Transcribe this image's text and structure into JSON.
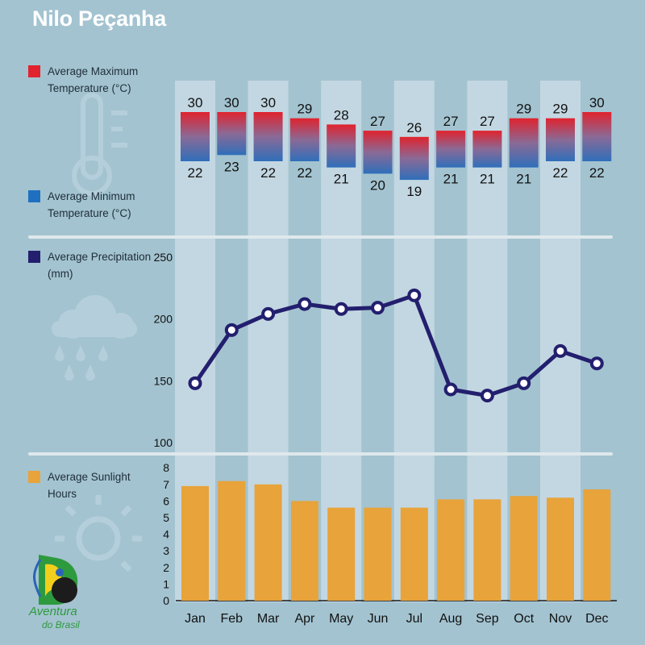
{
  "title": "Nilo Peçanha",
  "legend": {
    "max_temp": "Average Maximum Temperature (°C)",
    "min_temp": "Average Minimum Temperature (°C)",
    "precip": "Average Precipitation (mm)",
    "sun": "Average Sunlight Hours"
  },
  "logo": {
    "line1": "Aventura",
    "line2": "do Brasil"
  },
  "colors": {
    "background": "#a3c3d0",
    "column_band": "#c3d7e2",
    "max_temp": "#e0232e",
    "min_temp": "#1f70c0",
    "precip": "#231f6e",
    "sun": "#e8a33a"
  },
  "chart_data": [
    {
      "type": "bar",
      "name": "temperature",
      "categories": [
        "Jan",
        "Feb",
        "Mar",
        "Apr",
        "May",
        "Jun",
        "Jul",
        "Aug",
        "Sep",
        "Oct",
        "Nov",
        "Dec"
      ],
      "series": [
        {
          "name": "Average Maximum Temperature (°C)",
          "values": [
            30,
            30,
            30,
            29,
            28,
            27,
            26,
            27,
            27,
            29,
            29,
            30
          ]
        },
        {
          "name": "Average Minimum Temperature (°C)",
          "values": [
            22,
            23,
            22,
            22,
            21,
            20,
            19,
            21,
            21,
            21,
            22,
            22
          ]
        }
      ]
    },
    {
      "type": "line",
      "name": "precipitation",
      "categories": [
        "Jan",
        "Feb",
        "Mar",
        "Apr",
        "May",
        "Jun",
        "Jul",
        "Aug",
        "Sep",
        "Oct",
        "Nov",
        "Dec"
      ],
      "series": [
        {
          "name": "Average Precipitation (mm)",
          "values": [
            148,
            191,
            204,
            212,
            208,
            209,
            219,
            143,
            138,
            148,
            174,
            164
          ]
        }
      ],
      "y_ticks": [
        100,
        150,
        200,
        250
      ],
      "ylim": [
        100,
        250
      ]
    },
    {
      "type": "bar",
      "name": "sunlight",
      "categories": [
        "Jan",
        "Feb",
        "Mar",
        "Apr",
        "May",
        "Jun",
        "Jul",
        "Aug",
        "Sep",
        "Oct",
        "Nov",
        "Dec"
      ],
      "series": [
        {
          "name": "Average Sunlight Hours",
          "values": [
            6.9,
            7.2,
            7.0,
            6.0,
            5.6,
            5.6,
            5.6,
            6.1,
            6.1,
            6.3,
            6.2,
            6.7
          ]
        }
      ],
      "y_ticks": [
        0,
        1,
        2,
        3,
        4,
        5,
        6,
        7,
        8
      ],
      "ylim": [
        0,
        8
      ]
    }
  ]
}
